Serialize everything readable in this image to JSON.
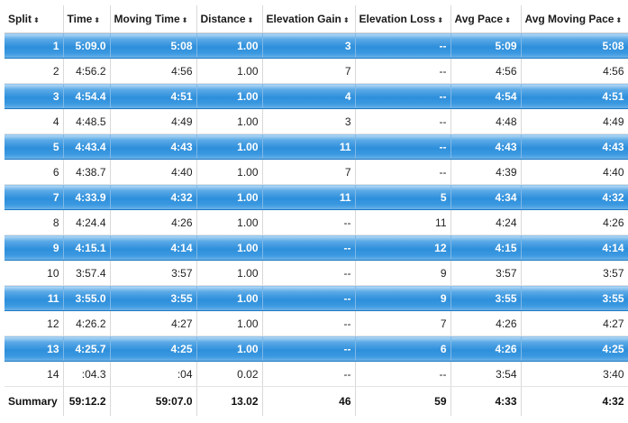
{
  "table": {
    "columns": [
      "Split",
      "Time",
      "Moving Time",
      "Distance",
      "Elevation Gain",
      "Elevation Loss",
      "Avg Pace",
      "Avg Moving Pace"
    ],
    "sort_icon": "sort-arrows-icon",
    "highlight_color": "#2d8fdb",
    "rows": [
      [
        "1",
        "5:09.0",
        "5:08",
        "1.00",
        "3",
        "--",
        "5:09",
        "5:08"
      ],
      [
        "2",
        "4:56.2",
        "4:56",
        "1.00",
        "7",
        "--",
        "4:56",
        "4:56"
      ],
      [
        "3",
        "4:54.4",
        "4:51",
        "1.00",
        "4",
        "--",
        "4:54",
        "4:51"
      ],
      [
        "4",
        "4:48.5",
        "4:49",
        "1.00",
        "3",
        "--",
        "4:48",
        "4:49"
      ],
      [
        "5",
        "4:43.4",
        "4:43",
        "1.00",
        "11",
        "--",
        "4:43",
        "4:43"
      ],
      [
        "6",
        "4:38.7",
        "4:40",
        "1.00",
        "7",
        "--",
        "4:39",
        "4:40"
      ],
      [
        "7",
        "4:33.9",
        "4:32",
        "1.00",
        "11",
        "5",
        "4:34",
        "4:32"
      ],
      [
        "8",
        "4:24.4",
        "4:26",
        "1.00",
        "--",
        "11",
        "4:24",
        "4:26"
      ],
      [
        "9",
        "4:15.1",
        "4:14",
        "1.00",
        "--",
        "12",
        "4:15",
        "4:14"
      ],
      [
        "10",
        "3:57.4",
        "3:57",
        "1.00",
        "--",
        "9",
        "3:57",
        "3:57"
      ],
      [
        "11",
        "3:55.0",
        "3:55",
        "1.00",
        "--",
        "9",
        "3:55",
        "3:55"
      ],
      [
        "12",
        "4:26.2",
        "4:27",
        "1.00",
        "--",
        "7",
        "4:26",
        "4:27"
      ],
      [
        "13",
        "4:25.7",
        "4:25",
        "1.00",
        "--",
        "6",
        "4:26",
        "4:25"
      ],
      [
        "14",
        ":04.3",
        ":04",
        "0.02",
        "--",
        "--",
        "3:54",
        "3:40"
      ]
    ],
    "summary": [
      "Summary",
      "59:12.2",
      "59:07.0",
      "13.02",
      "46",
      "59",
      "4:33",
      "4:32"
    ]
  }
}
